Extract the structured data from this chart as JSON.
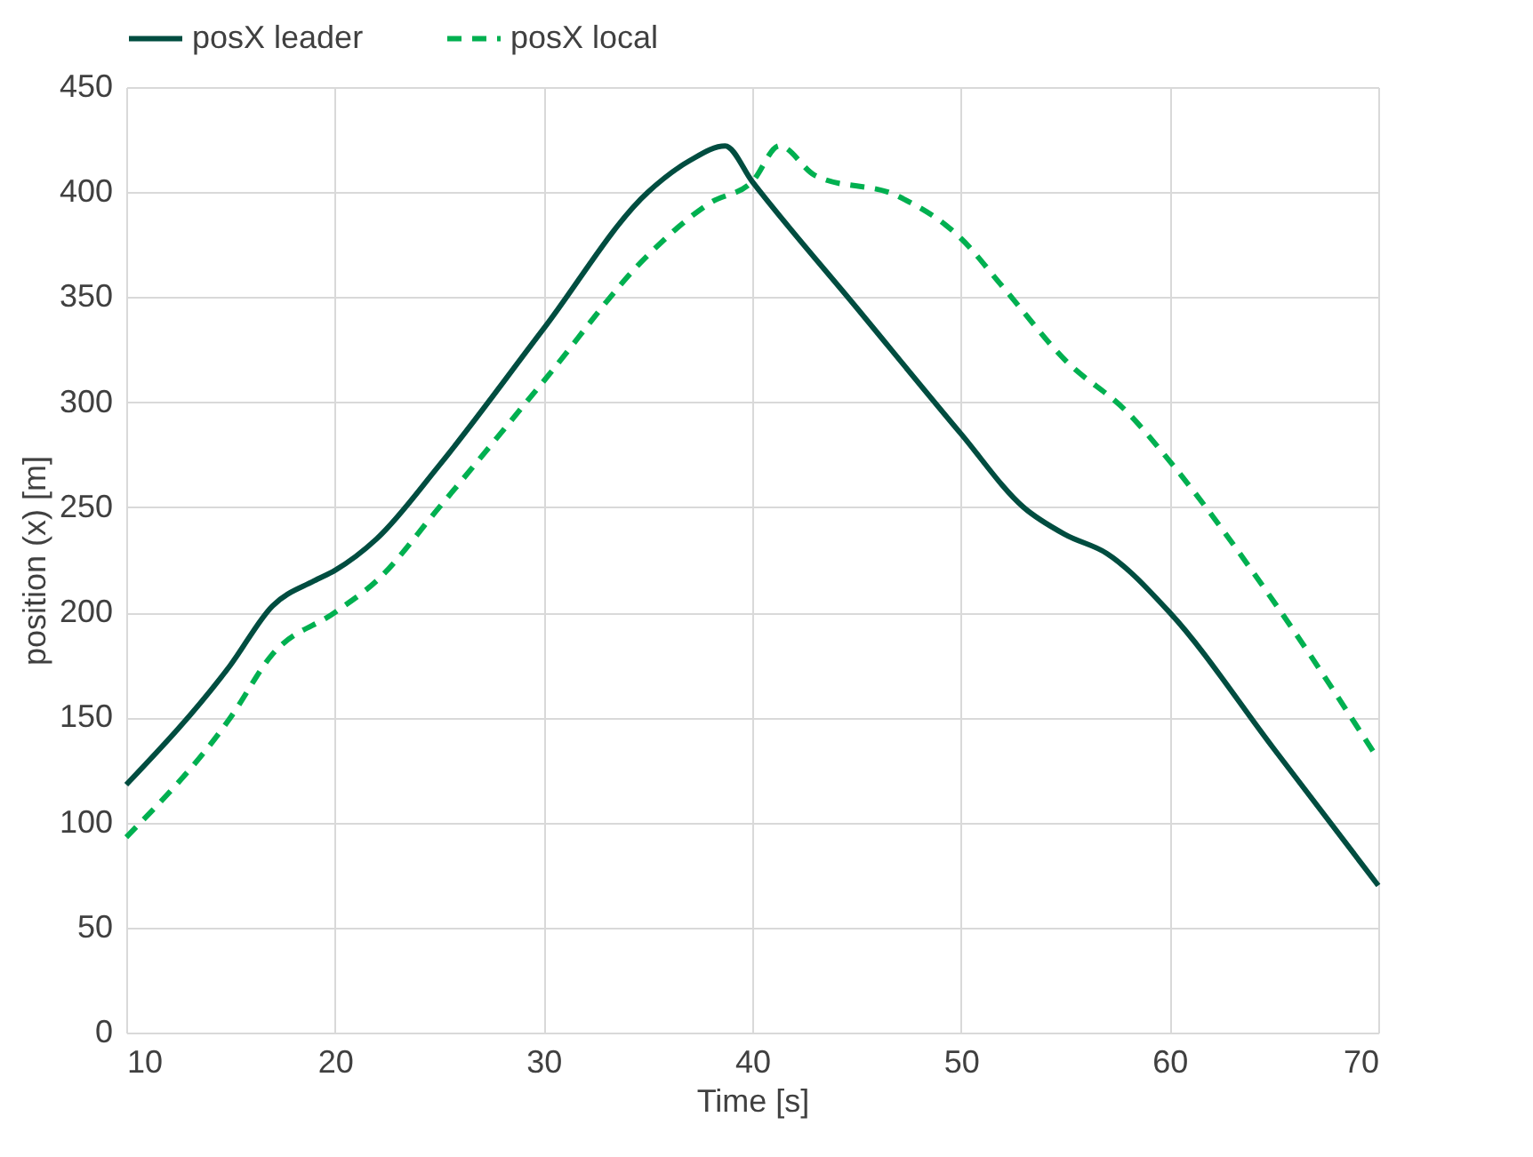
{
  "chart_data": {
    "type": "line",
    "xlabel": "Time [s]",
    "ylabel": "position (x) [m]",
    "xlim": [
      10,
      70
    ],
    "xticks": [
      10,
      20,
      30,
      40,
      50,
      60,
      70
    ],
    "ylim": [
      0,
      450
    ],
    "yticks": [
      0,
      50,
      100,
      150,
      200,
      250,
      300,
      350,
      400,
      450
    ],
    "grid": true,
    "legend": "top",
    "marker": "none",
    "series": [
      {
        "name": "posX leader",
        "color": "#004d40",
        "line_style": "solid",
        "x": [
          10,
          15,
          17,
          19,
          20,
          22,
          25,
          30,
          35,
          37,
          38.7,
          40,
          45,
          50,
          53,
          55,
          57,
          60,
          65,
          70
        ],
        "values": [
          118,
          175,
          203,
          215,
          220,
          235,
          270,
          335,
          400,
          415,
          422,
          405,
          345,
          285,
          250,
          237,
          228,
          200,
          135,
          70
        ]
      },
      {
        "name": "posX local",
        "color": "#00b050",
        "line_style": "dashed",
        "x": [
          10,
          15,
          17,
          20,
          22,
          25,
          30,
          35,
          38,
          40,
          41.3,
          43,
          47,
          50,
          52,
          55,
          58,
          60,
          65,
          70
        ],
        "values": [
          93,
          150,
          180,
          200,
          215,
          250,
          310,
          370,
          395,
          405,
          422,
          408,
          398,
          378,
          355,
          320,
          295,
          272,
          205,
          130
        ]
      }
    ]
  }
}
